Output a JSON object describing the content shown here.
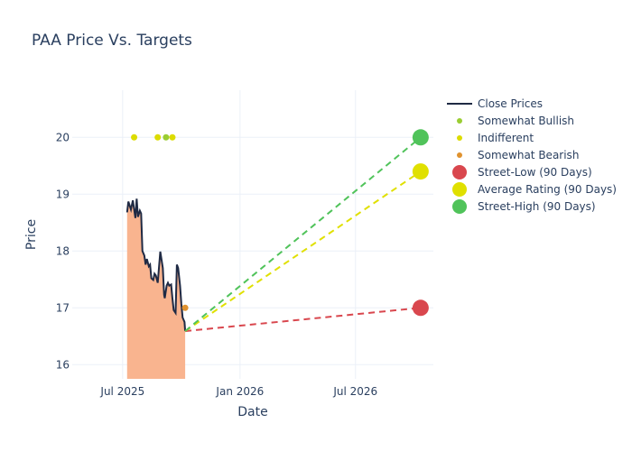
{
  "chart_data": {
    "type": "line",
    "title": "PAA Price Vs. Targets",
    "xlabel": "Date",
    "ylabel": "Price",
    "xlim": [
      "2025-04-13",
      "2026-10-31"
    ],
    "ylim": [
      15.75,
      20.83
    ],
    "x_ticks": [
      {
        "date": "2025-07-01",
        "label": "Jul 2025"
      },
      {
        "date": "2026-01-01",
        "label": "Jan 2026"
      },
      {
        "date": "2026-07-01",
        "label": "Jul 2026"
      }
    ],
    "y_ticks": [
      16,
      17,
      18,
      19,
      20
    ],
    "grid": true,
    "legend_position": "right",
    "legend": [
      "Close Prices",
      "Somewhat Bullish",
      "Indifferent",
      "Somewhat Bearish",
      "Street-Low (90 Days)",
      "Average Rating (90 Days)",
      "Street-High (90 Days)"
    ],
    "colors": {
      "line": "#1f2a44",
      "fill": "#f9b48f",
      "bullish": "#9acd32",
      "indifferent": "#dcdc00",
      "bearish": "#e0922f",
      "low": "#d9474e",
      "avg": "#e0e000",
      "high": "#50c35a"
    },
    "close_prices": {
      "x": [
        "2025-07-08",
        "2025-07-10",
        "2025-07-14",
        "2025-07-17",
        "2025-07-21",
        "2025-07-23",
        "2025-07-25",
        "2025-07-28",
        "2025-07-30",
        "2025-08-01",
        "2025-08-04",
        "2025-08-06",
        "2025-08-08",
        "2025-08-11",
        "2025-08-13",
        "2025-08-15",
        "2025-08-18",
        "2025-08-20",
        "2025-08-22",
        "2025-08-25",
        "2025-08-29",
        "2025-09-02",
        "2025-09-04",
        "2025-09-05",
        "2025-09-08",
        "2025-09-10",
        "2025-09-12",
        "2025-09-15",
        "2025-09-17",
        "2025-09-19",
        "2025-09-22",
        "2025-09-24",
        "2025-09-26",
        "2025-09-29",
        "2025-10-01",
        "2025-10-03",
        "2025-10-06",
        "2025-10-07"
      ],
      "y": [
        18.68,
        18.87,
        18.73,
        18.89,
        18.58,
        18.92,
        18.6,
        18.71,
        18.66,
        18.0,
        17.92,
        17.76,
        17.86,
        17.73,
        17.76,
        17.52,
        17.49,
        17.6,
        17.57,
        17.44,
        17.99,
        17.7,
        17.23,
        17.17,
        17.39,
        17.44,
        17.39,
        17.41,
        17.17,
        16.96,
        16.91,
        17.76,
        17.7,
        17.39,
        17.07,
        16.83,
        16.75,
        16.59
      ]
    },
    "ratings": [
      {
        "category": "Indifferent",
        "date": "2025-07-19",
        "price": 20
      },
      {
        "category": "Indifferent",
        "date": "2025-08-25",
        "price": 20
      },
      {
        "category": "Somewhat Bullish",
        "date": "2025-09-07",
        "price": 20
      },
      {
        "category": "Indifferent",
        "date": "2025-09-17",
        "price": 20
      },
      {
        "category": "Somewhat Bearish",
        "date": "2025-10-07",
        "price": 17
      }
    ],
    "targets": {
      "date": "2026-10-11",
      "street_low": 17.0,
      "average": 19.4,
      "street_high": 20.0
    }
  }
}
